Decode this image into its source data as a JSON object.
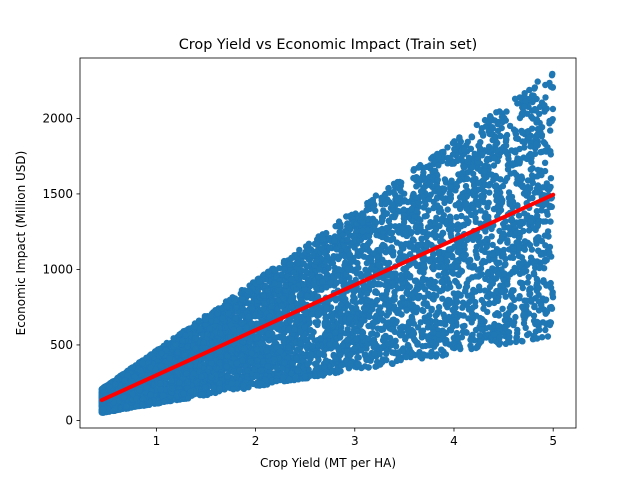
{
  "chart_data": {
    "type": "scatter",
    "title": "Crop Yield vs Economic Impact (Train set)",
    "xlabel": "Crop Yield (MT per HA)",
    "ylabel": "Economic Impact (Million USD)",
    "xlim": [
      0.23,
      5.23
    ],
    "ylim": [
      -50,
      2400
    ],
    "xticks": [
      "1",
      "2",
      "3",
      "4",
      "5"
    ],
    "yticks": [
      "0",
      "500",
      "1000",
      "1500",
      "2000"
    ],
    "grid": false,
    "legend": "none",
    "series": [
      {
        "kind": "scatter",
        "color": "#1f77b4",
        "x_range": [
          0.45,
          5.0
        ],
        "lower_ratio_to_fit": 0.37,
        "upper_ratio_to_fit": 1.55,
        "approx_point_count": 7000
      },
      {
        "kind": "line",
        "color": "#ff0000",
        "x": [
          0.45,
          5.0
        ],
        "y": [
          135,
          1495
        ]
      }
    ]
  }
}
